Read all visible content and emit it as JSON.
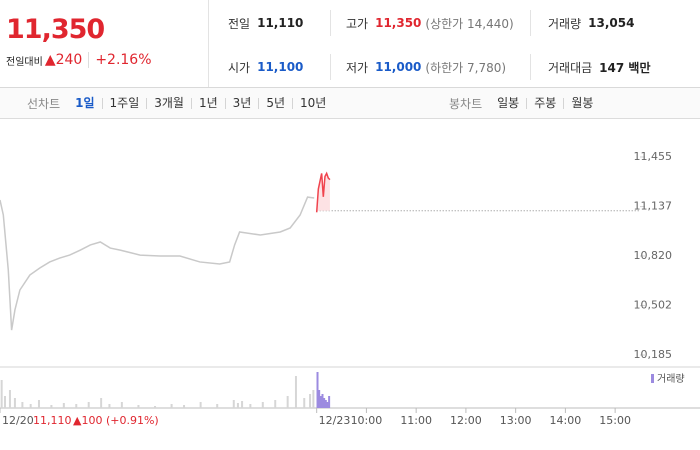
{
  "header": {
    "price": "11,350",
    "change_label": "전일대비",
    "change": "▲240",
    "change_pct": "+2.16%",
    "stats": [
      {
        "label": "전일",
        "value": "11,110",
        "color": "#222222"
      },
      {
        "label": "고가",
        "value": "11,350",
        "color": "#e0262f",
        "note": "(상한가 14,440)"
      },
      {
        "label": "거래량",
        "value": "13,054",
        "color": "#222222"
      },
      {
        "label": "시가",
        "value": "11,100",
        "color": "#1a5bc8"
      },
      {
        "label": "저가",
        "value": "11,000",
        "color": "#1a5bc8",
        "note": "(하한가 7,780)"
      },
      {
        "label": "거래대금",
        "value": "147 백만",
        "color": "#222222"
      }
    ]
  },
  "tabs": {
    "line_label": "선차트",
    "line": [
      "1일",
      "1주일",
      "3개월",
      "1년",
      "3년",
      "5년",
      "10년"
    ],
    "selected_index": 0,
    "candle_label": "봉차트",
    "candle": [
      "일봉",
      "주봉",
      "월봉"
    ]
  },
  "chart_data": {
    "type": "line",
    "xlim": [
      -382,
      390
    ],
    "xticks": [
      {
        "value": -382,
        "label": "12/20"
      },
      {
        "value": 0,
        "label": "12/23"
      },
      {
        "value": 60,
        "label": "10:00"
      },
      {
        "value": 120,
        "label": "11:00"
      },
      {
        "value": 180,
        "label": "12:00"
      },
      {
        "value": 240,
        "label": "13:00"
      },
      {
        "value": 300,
        "label": "14:00"
      },
      {
        "value": 360,
        "label": "15:00"
      }
    ],
    "ylim": [
      10121,
      11641
    ],
    "yticks": [
      {
        "value": 11455,
        "label": "11,455"
      },
      {
        "value": 11137,
        "label": "11,137"
      },
      {
        "value": 10820,
        "label": "10,820"
      },
      {
        "value": 10502,
        "label": "10,502"
      },
      {
        "value": 10185,
        "label": "10,185"
      }
    ],
    "reference": 11110,
    "series": [
      {
        "color": "#c9c9c9",
        "x": [
          -382,
          -378,
          -372,
          -368,
          -364,
          -358,
          -346,
          -334,
          -322,
          -310,
          -298,
          -285,
          -273,
          -261,
          -249,
          -237,
          -213,
          -189,
          -165,
          -141,
          -117,
          -105,
          -99,
          -93,
          -68,
          -44,
          -32,
          -20,
          -11,
          -3
        ],
        "values": [
          11179,
          11083,
          10730,
          10345,
          10474,
          10602,
          10698,
          10743,
          10782,
          10807,
          10826,
          10858,
          10891,
          10910,
          10871,
          10858,
          10826,
          10820,
          10820,
          10782,
          10769,
          10782,
          10891,
          10974,
          10955,
          10974,
          11000,
          11083,
          11198,
          11192
        ]
      },
      {
        "color": "#f0434d",
        "fill": "#fde2e4",
        "x": [
          0,
          2,
          4,
          6,
          8,
          10,
          12,
          14,
          16
        ],
        "values": [
          11100,
          11250,
          11300,
          11350,
          11200,
          11330,
          11350,
          11320,
          11310
        ]
      }
    ],
    "volume": {
      "name": "거래량",
      "ylim": [
        0,
        2000
      ],
      "series": [
        {
          "color": "#d6d6d6",
          "x": [
            -380,
            -376,
            -370,
            -364,
            -355,
            -345,
            -335,
            -320,
            -305,
            -290,
            -275,
            -260,
            -250,
            -235,
            -215,
            -195,
            -175,
            -160,
            -140,
            -120,
            -100,
            -95,
            -90,
            -80,
            -65,
            -50,
            -35,
            -25,
            -15,
            -8,
            -4
          ],
          "values": [
            1400,
            600,
            900,
            500,
            300,
            200,
            400,
            150,
            250,
            200,
            300,
            500,
            200,
            300,
            150,
            100,
            200,
            150,
            300,
            200,
            400,
            250,
            350,
            200,
            300,
            400,
            600,
            1600,
            500,
            700,
            900
          ]
        },
        {
          "color": "#9c8be0",
          "x": [
            1,
            3,
            5,
            7,
            9,
            11,
            13,
            15
          ],
          "values": [
            1800,
            900,
            600,
            700,
            500,
            400,
            300,
            600
          ]
        }
      ]
    },
    "info": {
      "close": "11,110",
      "change": "▲100 (+0.91%)"
    }
  }
}
